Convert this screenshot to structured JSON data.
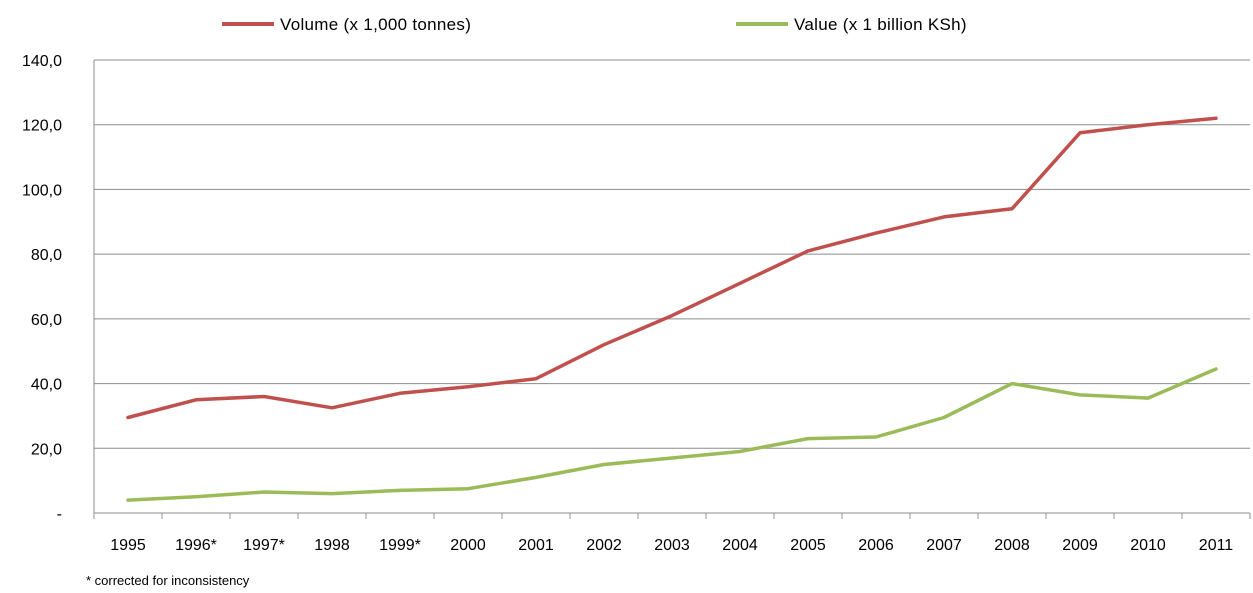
{
  "chart_data": {
    "type": "line",
    "categories": [
      "1995",
      "1996*",
      "1997*",
      "1998",
      "1999*",
      "2000",
      "2001",
      "2002",
      "2003",
      "2004",
      "2005",
      "2006",
      "2007",
      "2008",
      "2009",
      "2010",
      "2011"
    ],
    "series": [
      {
        "name": "Volume (x 1,000  tonnes)",
        "color": "#c0504d",
        "values": [
          29.5,
          35.0,
          36.0,
          32.5,
          37.0,
          39.0,
          41.5,
          52.0,
          61.0,
          71.0,
          81.0,
          86.5,
          91.5,
          94.0,
          117.5,
          120.0,
          122.0
        ]
      },
      {
        "name": "Value (x 1 billion KSh)",
        "color": "#9bbb59",
        "values": [
          4.0,
          5.0,
          6.5,
          6.0,
          7.0,
          7.5,
          11.0,
          15.0,
          17.0,
          19.0,
          23.0,
          23.5,
          29.5,
          40.0,
          36.5,
          35.5,
          44.5
        ]
      }
    ],
    "y_ticks": [
      "-",
      "20,0",
      "40,0",
      "60,0",
      "80,0",
      "100,0",
      "120,0",
      "140,0"
    ],
    "ylim": [
      0,
      140
    ],
    "grid": true,
    "legend_position": "top"
  },
  "footnote": "* corrected for inconsistency"
}
